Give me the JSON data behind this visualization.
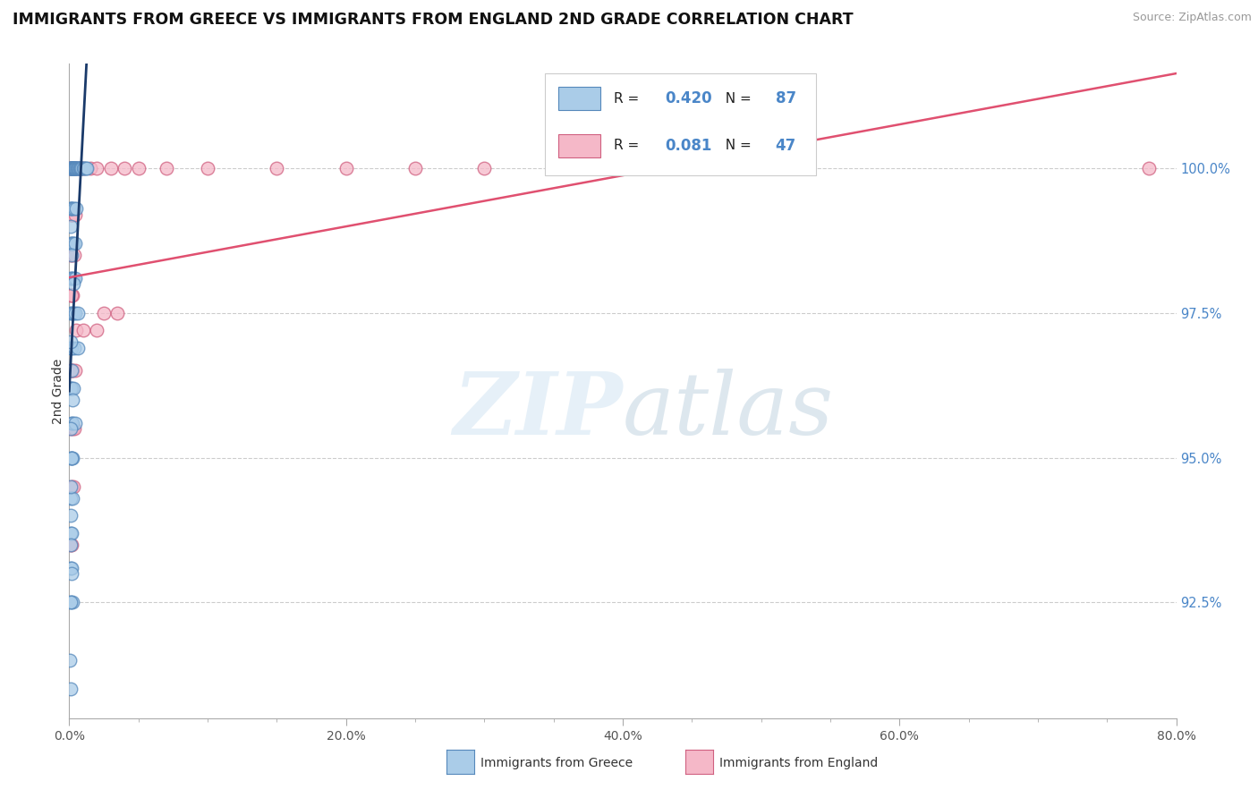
{
  "title": "IMMIGRANTS FROM GREECE VS IMMIGRANTS FROM ENGLAND 2ND GRADE CORRELATION CHART",
  "source": "Source: ZipAtlas.com",
  "ylabel": "2nd Grade",
  "yaxis_labels": [
    "92.5%",
    "95.0%",
    "97.5%",
    "100.0%"
  ],
  "yaxis_values": [
    92.5,
    95.0,
    97.5,
    100.0
  ],
  "xlim": [
    0.0,
    80.0
  ],
  "ylim": [
    90.5,
    101.8
  ],
  "legend_blue": {
    "r": "0.420",
    "n": "87",
    "label": "Immigrants from Greece"
  },
  "legend_pink": {
    "r": "0.081",
    "n": "47",
    "label": "Immigrants from England"
  },
  "color_blue_fill": "#aacce8",
  "color_blue_edge": "#5588bb",
  "color_blue_line": "#1a3a6a",
  "color_pink_fill": "#f5b8c8",
  "color_pink_edge": "#d06080",
  "color_pink_line": "#e05070",
  "color_grid": "#cccccc",
  "color_ytick": "#4a86c8",
  "greece_x": [
    0.05,
    0.08,
    0.1,
    0.12,
    0.15,
    0.18,
    0.2,
    0.22,
    0.25,
    0.28,
    0.3,
    0.32,
    0.35,
    0.38,
    0.4,
    0.42,
    0.45,
    0.5,
    0.55,
    0.6,
    0.65,
    0.7,
    0.75,
    0.8,
    0.85,
    0.9,
    1.0,
    1.1,
    1.2,
    1.3,
    0.08,
    0.12,
    0.18,
    0.25,
    0.35,
    0.5,
    0.1,
    0.15,
    0.22,
    0.32,
    0.45,
    0.12,
    0.2,
    0.3,
    0.42,
    0.1,
    0.18,
    0.28,
    0.4,
    0.6,
    0.12,
    0.2,
    0.35,
    0.6,
    0.05,
    0.1,
    0.18,
    0.28,
    0.15,
    0.25,
    0.4,
    0.08,
    0.15,
    0.25,
    0.12,
    0.22,
    0.08,
    0.15,
    0.08,
    0.18,
    0.12,
    0.22,
    0.1,
    0.18,
    0.28,
    0.08,
    0.15,
    0.22,
    0.1,
    0.18,
    0.08,
    0.12,
    0.08,
    0.15,
    0.1,
    0.07,
    0.1
  ],
  "greece_y": [
    100.0,
    100.0,
    100.0,
    100.0,
    100.0,
    100.0,
    100.0,
    100.0,
    100.0,
    100.0,
    100.0,
    100.0,
    100.0,
    100.0,
    100.0,
    100.0,
    100.0,
    100.0,
    100.0,
    100.0,
    100.0,
    100.0,
    100.0,
    100.0,
    100.0,
    100.0,
    100.0,
    100.0,
    100.0,
    100.0,
    99.3,
    99.3,
    99.3,
    99.3,
    99.3,
    99.3,
    98.7,
    98.7,
    98.7,
    98.7,
    98.7,
    98.1,
    98.1,
    98.1,
    98.1,
    97.5,
    97.5,
    97.5,
    97.5,
    97.5,
    96.9,
    96.9,
    96.9,
    96.9,
    96.2,
    96.2,
    96.2,
    96.2,
    95.6,
    95.6,
    95.6,
    95.0,
    95.0,
    95.0,
    94.3,
    94.3,
    93.7,
    93.7,
    93.1,
    93.1,
    92.5,
    92.5,
    99.0,
    98.5,
    98.0,
    97.0,
    96.5,
    96.0,
    95.5,
    95.0,
    94.5,
    94.0,
    93.5,
    93.0,
    92.5,
    91.5,
    91.0
  ],
  "england_x": [
    0.05,
    0.08,
    0.12,
    0.18,
    0.25,
    0.35,
    0.5,
    0.7,
    1.0,
    1.5,
    2.0,
    3.0,
    4.0,
    5.0,
    7.0,
    10.0,
    15.0,
    20.0,
    25.0,
    30.0,
    0.08,
    0.15,
    0.25,
    0.4,
    0.1,
    0.2,
    0.35,
    0.12,
    0.22,
    0.15,
    0.5,
    1.0,
    2.0,
    0.08,
    0.15,
    0.25,
    0.4,
    0.12,
    0.22,
    0.35,
    0.18,
    0.3,
    2.5,
    3.5,
    0.08,
    0.18,
    78.0
  ],
  "england_y": [
    100.0,
    100.0,
    100.0,
    100.0,
    100.0,
    100.0,
    100.0,
    100.0,
    100.0,
    100.0,
    100.0,
    100.0,
    100.0,
    100.0,
    100.0,
    100.0,
    100.0,
    100.0,
    100.0,
    100.0,
    99.2,
    99.2,
    99.2,
    99.2,
    98.5,
    98.5,
    98.5,
    97.8,
    97.8,
    97.8,
    97.2,
    97.2,
    97.2,
    96.5,
    96.5,
    96.5,
    96.5,
    95.5,
    95.5,
    95.5,
    94.5,
    94.5,
    97.5,
    97.5,
    93.5,
    93.5,
    100.0
  ]
}
